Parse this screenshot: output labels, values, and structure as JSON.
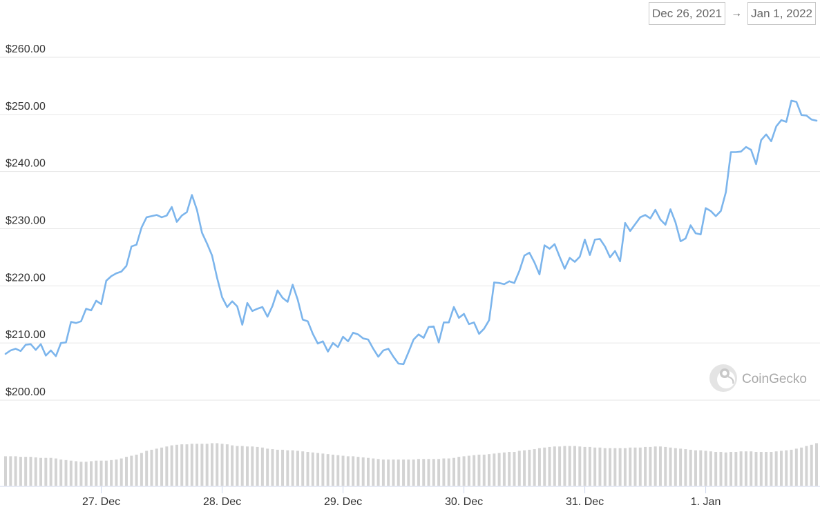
{
  "date_range": {
    "from": "Dec 26, 2021",
    "arrow": "→",
    "to": "Jan 1, 2022"
  },
  "watermark": {
    "text": "CoinGecko",
    "icon": "gecko-logo-icon"
  },
  "colors": {
    "line": "#7cb5ec",
    "volume": "#d3d3d3",
    "grid": "#e6e6e6"
  },
  "chart_data": {
    "type": "line",
    "ylim": [
      200,
      260
    ],
    "yticks": [
      200,
      210,
      220,
      230,
      240,
      250,
      260
    ],
    "ytick_labels": [
      "$200.00",
      "$210.00",
      "$220.00",
      "$230.00",
      "$240.00",
      "$250.00",
      "$260.00"
    ],
    "x_start": "2021-12-26T05:00",
    "x_step_hours": 1,
    "xticks": [
      "2021-12-27",
      "2021-12-28",
      "2021-12-29",
      "2021-12-30",
      "2021-12-31",
      "2022-01-01"
    ],
    "xtick_labels": [
      "27. Dec",
      "28. Dec",
      "29. Dec",
      "30. Dec",
      "31. Dec",
      "1. Jan"
    ],
    "series": [
      {
        "values": [
          208.1,
          208.7,
          209.0,
          208.6,
          209.7,
          209.8,
          208.8,
          209.8,
          207.8,
          208.7,
          207.7,
          210.0,
          210.1,
          213.7,
          213.5,
          213.8,
          216.0,
          215.7,
          217.4,
          216.8,
          220.9,
          221.7,
          222.2,
          222.5,
          223.5,
          226.9,
          227.2,
          230.2,
          232.0,
          232.2,
          232.4,
          232.0,
          232.3,
          233.8,
          231.2,
          232.3,
          232.9,
          235.9,
          233.3,
          229.3,
          227.4,
          225.3,
          221.4,
          218.0,
          216.3,
          217.3,
          216.4,
          213.2,
          217.0,
          215.6,
          216.0,
          216.3,
          214.6,
          216.5,
          219.2,
          217.9,
          217.2,
          220.2,
          217.6,
          214.1,
          213.8,
          211.6,
          209.9,
          210.3,
          208.5,
          210.0,
          209.3,
          211.1,
          210.3,
          211.8,
          211.5,
          210.8,
          210.6,
          209.0,
          207.6,
          208.7,
          209.0,
          207.6,
          206.4,
          206.3,
          208.4,
          210.6,
          211.5,
          210.9,
          212.8,
          212.9,
          210.1,
          213.6,
          213.6,
          216.3,
          214.4,
          215.1,
          213.3,
          213.6,
          211.6,
          212.5,
          214.0,
          220.6,
          220.5,
          220.3,
          220.8,
          220.5,
          222.6,
          225.3,
          225.8,
          224.1,
          222.0,
          227.1,
          226.5,
          227.3,
          225.1,
          223.0,
          224.9,
          224.2,
          225.1,
          228.1,
          225.4,
          228.1,
          228.2,
          226.9,
          225.0,
          226.1,
          224.3,
          231.0,
          229.6,
          230.8,
          232.0,
          232.4,
          231.8,
          233.3,
          231.6,
          230.7,
          233.4,
          231.1,
          227.8,
          228.3,
          230.6,
          229.2,
          229.0,
          233.6,
          233.1,
          232.2,
          233.1,
          236.4,
          243.4,
          243.4,
          243.5,
          244.3,
          243.8,
          241.3,
          245.5,
          246.5,
          245.3,
          247.9,
          249.0,
          248.7,
          252.4,
          252.2,
          249.9,
          249.8,
          249.1,
          248.9
        ]
      }
    ],
    "volume": {
      "ylim": [
        0,
        1
      ],
      "values": [
        0.54,
        0.54,
        0.54,
        0.53,
        0.53,
        0.53,
        0.52,
        0.51,
        0.51,
        0.51,
        0.5,
        0.48,
        0.47,
        0.46,
        0.45,
        0.44,
        0.44,
        0.45,
        0.46,
        0.46,
        0.46,
        0.47,
        0.48,
        0.5,
        0.53,
        0.55,
        0.57,
        0.6,
        0.64,
        0.66,
        0.68,
        0.7,
        0.72,
        0.74,
        0.75,
        0.76,
        0.76,
        0.77,
        0.77,
        0.77,
        0.77,
        0.78,
        0.78,
        0.77,
        0.76,
        0.74,
        0.73,
        0.73,
        0.72,
        0.72,
        0.71,
        0.7,
        0.68,
        0.67,
        0.66,
        0.66,
        0.65,
        0.65,
        0.64,
        0.63,
        0.62,
        0.61,
        0.6,
        0.59,
        0.58,
        0.57,
        0.56,
        0.55,
        0.54,
        0.54,
        0.53,
        0.52,
        0.51,
        0.5,
        0.49,
        0.48,
        0.48,
        0.48,
        0.48,
        0.48,
        0.48,
        0.48,
        0.49,
        0.49,
        0.49,
        0.49,
        0.49,
        0.5,
        0.5,
        0.51,
        0.53,
        0.54,
        0.55,
        0.56,
        0.57,
        0.57,
        0.58,
        0.59,
        0.6,
        0.61,
        0.62,
        0.62,
        0.64,
        0.65,
        0.66,
        0.67,
        0.69,
        0.7,
        0.71,
        0.72,
        0.72,
        0.73,
        0.73,
        0.73,
        0.72,
        0.71,
        0.71,
        0.7,
        0.7,
        0.69,
        0.69,
        0.69,
        0.69,
        0.69,
        0.7,
        0.7,
        0.7,
        0.71,
        0.71,
        0.72,
        0.72,
        0.71,
        0.7,
        0.69,
        0.68,
        0.67,
        0.66,
        0.65,
        0.65,
        0.64,
        0.63,
        0.62,
        0.62,
        0.61,
        0.62,
        0.62,
        0.63,
        0.63,
        0.63,
        0.62,
        0.62,
        0.62,
        0.62,
        0.63,
        0.64,
        0.65,
        0.66,
        0.68,
        0.7,
        0.73,
        0.75,
        0.78,
        0.8,
        0.82,
        0.83,
        0.84,
        0.84,
        0.85,
        0.85,
        0.85
      ]
    },
    "grid": true,
    "legend": "none"
  }
}
